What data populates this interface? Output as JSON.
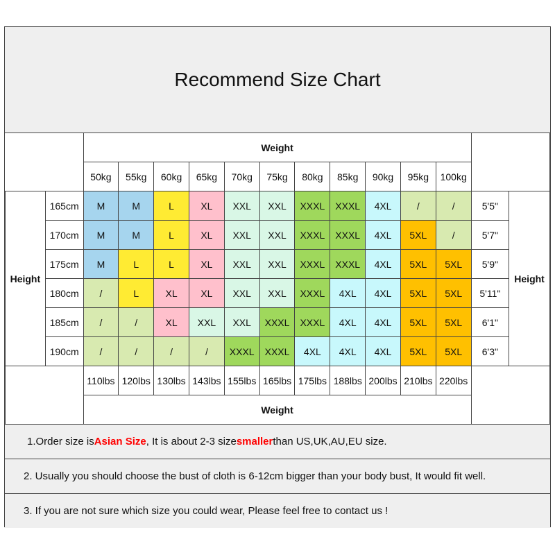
{
  "title": "Recommend Size Chart",
  "weight_label": "Weight",
  "height_label": "Height",
  "weights_kg": [
    "50kg",
    "55kg",
    "60kg",
    "65kg",
    "70kg",
    "75kg",
    "80kg",
    "85kg",
    "90kg",
    "95kg",
    "100kg"
  ],
  "weights_lbs": [
    "110lbs",
    "120lbs",
    "130lbs",
    "143lbs",
    "155lbs",
    "165lbs",
    "175lbs",
    "188lbs",
    "200lbs",
    "210lbs",
    "220lbs"
  ],
  "rows": [
    {
      "cm": "165cm",
      "ft": "5'5\"",
      "sizes": [
        "M",
        "M",
        "L",
        "XL",
        "XXL",
        "XXL",
        "XXXL",
        "XXXL",
        "4XL",
        "/",
        "/"
      ]
    },
    {
      "cm": "170cm",
      "ft": "5'7\"",
      "sizes": [
        "M",
        "M",
        "L",
        "XL",
        "XXL",
        "XXL",
        "XXXL",
        "XXXL",
        "4XL",
        "5XL",
        "/"
      ]
    },
    {
      "cm": "175cm",
      "ft": "5'9\"",
      "sizes": [
        "M",
        "L",
        "L",
        "XL",
        "XXL",
        "XXL",
        "XXXL",
        "XXXL",
        "4XL",
        "5XL",
        "5XL"
      ]
    },
    {
      "cm": "180cm",
      "ft": "5'11\"",
      "sizes": [
        "/",
        "L",
        "XL",
        "XL",
        "XXL",
        "XXL",
        "XXXL",
        "4XL",
        "4XL",
        "5XL",
        "5XL"
      ]
    },
    {
      "cm": "185cm",
      "ft": "6'1\"",
      "sizes": [
        "/",
        "/",
        "XL",
        "XXL",
        "XXL",
        "XXXL",
        "XXXL",
        "4XL",
        "4XL",
        "5XL",
        "5XL"
      ]
    },
    {
      "cm": "190cm",
      "ft": "6'3\"",
      "sizes": [
        "/",
        "/",
        "/",
        "/",
        "XXXL",
        "XXXL",
        "4XL",
        "4XL",
        "4XL",
        "5XL",
        "5XL"
      ]
    }
  ],
  "size_colors": {
    "M": "#a6d5ee",
    "L": "#ffeb33",
    "XL": "#ffc0cc",
    "XXL": "#d9f7e6",
    "XXXL": "#9fd85c",
    "4XL": "#c8f8fc",
    "5XL": "#ffc000",
    "/": "#d8eab0"
  },
  "notes": {
    "n1": {
      "a": "1.Order size is ",
      "b": "Asian Size",
      "c": ", It is about 2-3 size ",
      "d": "smaller",
      "e": " than US,UK,AU,EU size."
    },
    "n2": "2. Usually you should choose the bust of cloth is 6-12cm bigger than your body bust, It would fit well.",
    "n3": "3. If you are not sure which size you could wear, Please feel free to contact us !"
  }
}
